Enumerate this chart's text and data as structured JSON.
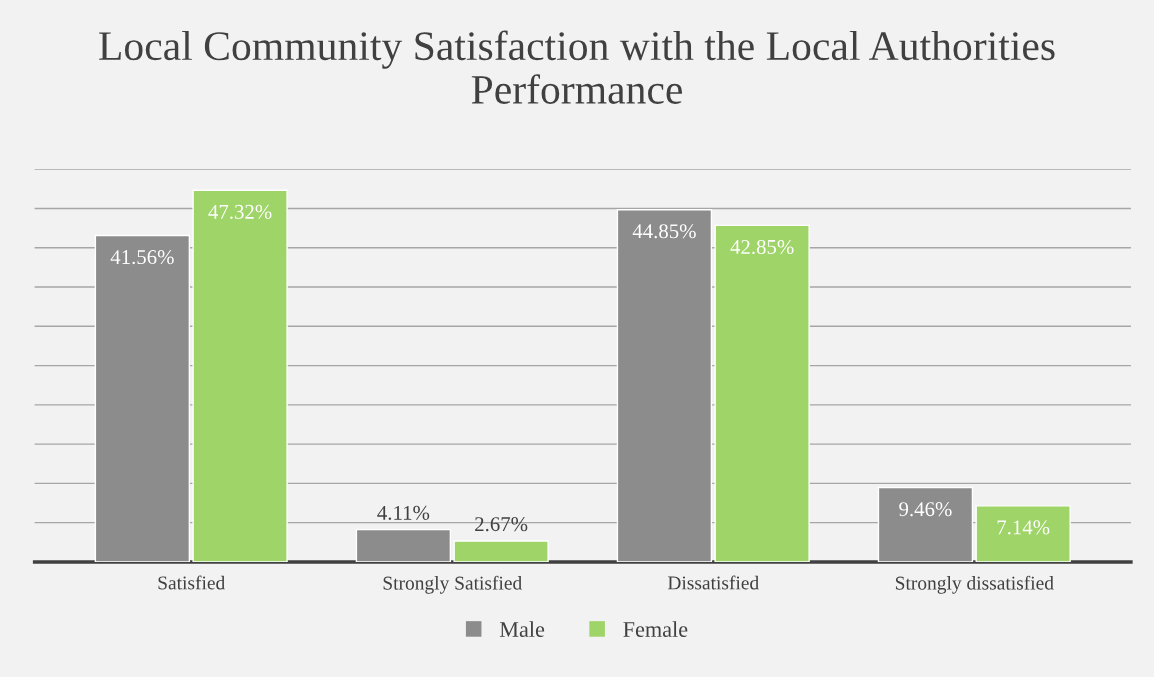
{
  "chart_data": {
    "type": "bar",
    "title": "Local Community Satisfaction with the Local Authorities Performance",
    "categories": [
      "Satisfied",
      "Strongly Satisfied",
      "Dissatisfied",
      "Strongly dissatisfied"
    ],
    "series": [
      {
        "name": "Male",
        "color": "#8c8c8c",
        "values": [
          41.56,
          4.11,
          44.85,
          9.46
        ],
        "value_labels": [
          "41.56%",
          "4.11%",
          "44.85%",
          "9.46%"
        ]
      },
      {
        "name": "Female",
        "color": "#9fd468",
        "values": [
          47.32,
          2.67,
          42.85,
          7.14
        ],
        "value_labels": [
          "47.32%",
          "2.67%",
          "42.85%",
          "7.14%"
        ]
      }
    ],
    "ylim": [
      0,
      50
    ],
    "yticks": [
      {
        "value": 0,
        "label": null
      },
      {
        "value": 5,
        "label": null
      },
      {
        "value": 10,
        "label": null
      },
      {
        "value": 15,
        "label": null
      },
      {
        "value": 20,
        "label": null
      },
      {
        "value": 25,
        "label": null
      },
      {
        "value": 30,
        "label": null
      },
      {
        "value": 35,
        "label": null
      },
      {
        "value": 40,
        "label": null
      },
      {
        "value": 45,
        "label": null
      },
      {
        "value": 50,
        "label": null
      }
    ],
    "tick_labels": "x",
    "grid": "y",
    "legend": "bottom"
  }
}
